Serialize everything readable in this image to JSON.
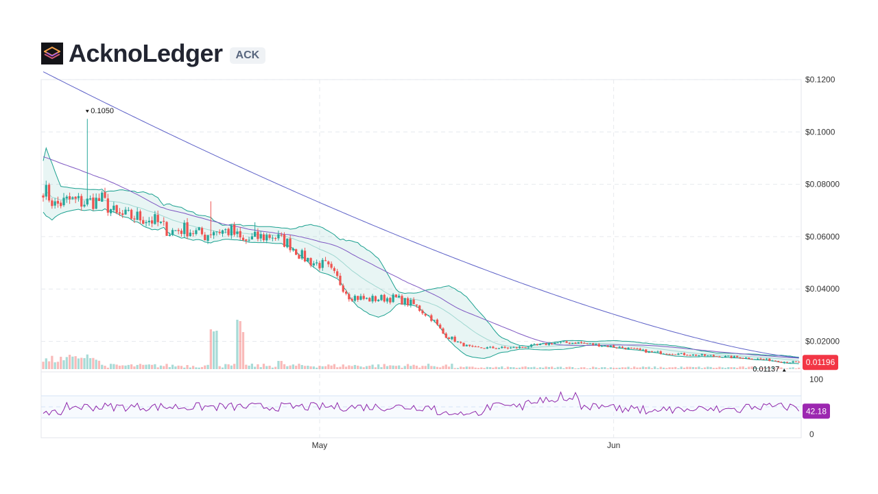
{
  "header": {
    "title": "AcknoLedger",
    "symbol": "ACK"
  },
  "colors": {
    "up": "#26a69a",
    "down": "#ef5350",
    "band": "#1aa08f",
    "ma_short": "#7e57c2",
    "ma_long": "#5b5fc7",
    "rsi": "#8e24aa",
    "price_tag": "#f23645",
    "rsi_tag": "#9c27b0"
  },
  "chart_data": [
    {
      "type": "candlestick",
      "name": "price",
      "y_axis": {
        "ticks": [
          "$0.1200",
          "$0.1000",
          "$0.08000",
          "$0.06000",
          "$0.04000",
          "$0.02000"
        ],
        "tick_values": [
          0.12,
          0.1,
          0.08,
          0.06,
          0.04,
          0.02
        ],
        "ylim": [
          0.0094,
          0.12
        ]
      },
      "x_axis": {
        "labels": [
          "May",
          "Jun"
        ],
        "label_index": [
          94,
          194
        ],
        "count": 258
      },
      "price_keypoints": [
        [
          0,
          0.0785
        ],
        [
          4,
          0.072
        ],
        [
          9,
          0.074
        ],
        [
          14,
          0.073
        ],
        [
          20,
          0.074
        ],
        [
          25,
          0.068
        ],
        [
          32,
          0.0675
        ],
        [
          38,
          0.066
        ],
        [
          43,
          0.062
        ],
        [
          48,
          0.063
        ],
        [
          55,
          0.0605
        ],
        [
          58,
          0.0625
        ],
        [
          64,
          0.062
        ],
        [
          68,
          0.058
        ],
        [
          72,
          0.0595
        ],
        [
          78,
          0.0605
        ],
        [
          84,
          0.057
        ],
        [
          88,
          0.0525
        ],
        [
          92,
          0.05
        ],
        [
          96,
          0.049
        ],
        [
          100,
          0.044
        ],
        [
          104,
          0.0375
        ],
        [
          110,
          0.036
        ],
        [
          116,
          0.0365
        ],
        [
          120,
          0.0365
        ],
        [
          126,
          0.034
        ],
        [
          132,
          0.029
        ],
        [
          136,
          0.023
        ],
        [
          142,
          0.019
        ],
        [
          146,
          0.0175
        ],
        [
          152,
          0.0175
        ],
        [
          160,
          0.0175
        ],
        [
          168,
          0.0185
        ],
        [
          174,
          0.0195
        ],
        [
          182,
          0.0195
        ],
        [
          190,
          0.0185
        ],
        [
          198,
          0.0175
        ],
        [
          206,
          0.016
        ],
        [
          216,
          0.0152
        ],
        [
          226,
          0.0145
        ],
        [
          238,
          0.0138
        ],
        [
          246,
          0.013
        ],
        [
          252,
          0.0122
        ],
        [
          257,
          0.01196
        ]
      ],
      "high_marker": {
        "index": 15,
        "value": 0.105,
        "label": "0.1050"
      },
      "low_marker": {
        "index": 252,
        "value": 0.01137,
        "label": "0.01137"
      },
      "last_price": {
        "value": 0.01196,
        "label": "0.01196"
      },
      "indicators": [
        "bollinger_bands",
        "moving_average_50",
        "moving_average_200",
        "volume"
      ]
    },
    {
      "type": "line",
      "name": "rsi",
      "y_axis": {
        "ticks": [
          "100",
          "0"
        ],
        "ylim": [
          0,
          100
        ]
      },
      "guides": [
        70,
        50,
        30
      ],
      "last_value": {
        "value": 42.18,
        "label": "42.18"
      }
    }
  ]
}
